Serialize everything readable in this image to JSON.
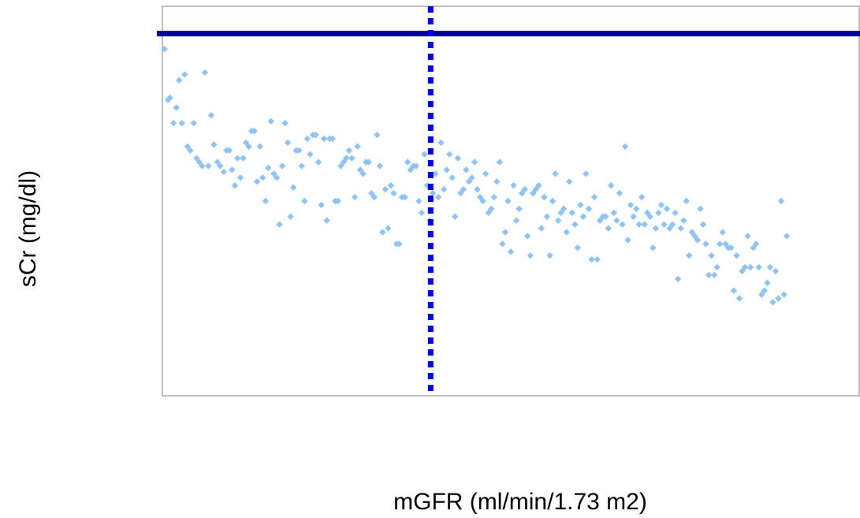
{
  "chart_data": {
    "type": "scatter",
    "title": "",
    "xlabel": "mGFR (ml/min/1.73 m2)",
    "ylabel": "sCr (mg/dl)",
    "xlim": [
      0,
      1
    ],
    "ylim": [
      0,
      1
    ],
    "grid": false,
    "ticks_shown": false,
    "colors": {
      "points": "#90c4f5",
      "horizontal_line": "#000099",
      "vertical_line": "#0000ee",
      "frame": "#7f7f7f"
    },
    "reference_lines": [
      {
        "orientation": "horizontal",
        "y": 0.93,
        "style": "solid"
      },
      {
        "orientation": "vertical",
        "x": 0.385,
        "style": "dotted"
      }
    ],
    "series": [
      {
        "marker": "diamond",
        "points": [
          [
            0.003,
            0.89
          ],
          [
            0.008,
            0.76
          ],
          [
            0.011,
            0.765
          ],
          [
            0.016,
            0.7
          ],
          [
            0.02,
            0.74
          ],
          [
            0.024,
            0.81
          ],
          [
            0.028,
            0.7
          ],
          [
            0.032,
            0.825
          ],
          [
            0.036,
            0.64
          ],
          [
            0.04,
            0.63
          ],
          [
            0.045,
            0.7
          ],
          [
            0.049,
            0.61
          ],
          [
            0.053,
            0.6
          ],
          [
            0.057,
            0.59
          ],
          [
            0.061,
            0.83
          ],
          [
            0.066,
            0.59
          ],
          [
            0.07,
            0.72
          ],
          [
            0.074,
            0.645
          ],
          [
            0.079,
            0.6
          ],
          [
            0.083,
            0.59
          ],
          [
            0.088,
            0.575
          ],
          [
            0.092,
            0.63
          ],
          [
            0.096,
            0.63
          ],
          [
            0.1,
            0.58
          ],
          [
            0.104,
            0.54
          ],
          [
            0.108,
            0.61
          ],
          [
            0.112,
            0.56
          ],
          [
            0.116,
            0.61
          ],
          [
            0.12,
            0.65
          ],
          [
            0.124,
            0.64
          ],
          [
            0.128,
            0.68
          ],
          [
            0.132,
            0.68
          ],
          [
            0.136,
            0.55
          ],
          [
            0.14,
            0.64
          ],
          [
            0.144,
            0.56
          ],
          [
            0.148,
            0.5
          ],
          [
            0.152,
            0.585
          ],
          [
            0.156,
            0.705
          ],
          [
            0.16,
            0.57
          ],
          [
            0.164,
            0.56
          ],
          [
            0.168,
            0.44
          ],
          [
            0.172,
            0.59
          ],
          [
            0.176,
            0.7
          ],
          [
            0.18,
            0.65
          ],
          [
            0.184,
            0.46
          ],
          [
            0.188,
            0.535
          ],
          [
            0.192,
            0.63
          ],
          [
            0.196,
            0.63
          ],
          [
            0.2,
            0.59
          ],
          [
            0.204,
            0.5
          ],
          [
            0.208,
            0.66
          ],
          [
            0.212,
            0.62
          ],
          [
            0.216,
            0.67
          ],
          [
            0.22,
            0.67
          ],
          [
            0.224,
            0.6
          ],
          [
            0.228,
            0.49
          ],
          [
            0.232,
            0.66
          ],
          [
            0.236,
            0.45
          ],
          [
            0.24,
            0.66
          ],
          [
            0.244,
            0.66
          ],
          [
            0.248,
            0.5
          ],
          [
            0.252,
            0.5
          ],
          [
            0.256,
            0.59
          ],
          [
            0.26,
            0.6
          ],
          [
            0.264,
            0.61
          ],
          [
            0.268,
            0.63
          ],
          [
            0.272,
            0.61
          ],
          [
            0.276,
            0.51
          ],
          [
            0.28,
            0.64
          ],
          [
            0.284,
            0.58
          ],
          [
            0.288,
            0.57
          ],
          [
            0.292,
            0.6
          ],
          [
            0.296,
            0.6
          ],
          [
            0.3,
            0.52
          ],
          [
            0.304,
            0.51
          ],
          [
            0.308,
            0.67
          ],
          [
            0.312,
            0.59
          ],
          [
            0.316,
            0.42
          ],
          [
            0.32,
            0.53
          ],
          [
            0.324,
            0.43
          ],
          [
            0.328,
            0.54
          ],
          [
            0.332,
            0.52
          ],
          [
            0.336,
            0.39
          ],
          [
            0.34,
            0.39
          ],
          [
            0.344,
            0.51
          ],
          [
            0.348,
            0.51
          ],
          [
            0.352,
            0.6
          ],
          [
            0.356,
            0.58
          ],
          [
            0.36,
            0.59
          ],
          [
            0.364,
            0.59
          ],
          [
            0.368,
            0.5
          ],
          [
            0.372,
            0.47
          ],
          [
            0.376,
            0.62
          ],
          [
            0.38,
            0.54
          ],
          [
            0.384,
            0.45
          ],
          [
            0.388,
            0.52
          ],
          [
            0.392,
            0.57
          ],
          [
            0.396,
            0.51
          ],
          [
            0.4,
            0.65
          ],
          [
            0.404,
            0.53
          ],
          [
            0.408,
            0.58
          ],
          [
            0.412,
            0.62
          ],
          [
            0.416,
            0.56
          ],
          [
            0.42,
            0.46
          ],
          [
            0.424,
            0.61
          ],
          [
            0.428,
            0.52
          ],
          [
            0.432,
            0.53
          ],
          [
            0.436,
            0.58
          ],
          [
            0.44,
            0.55
          ],
          [
            0.444,
            0.56
          ],
          [
            0.448,
            0.6
          ],
          [
            0.452,
            0.53
          ],
          [
            0.456,
            0.51
          ],
          [
            0.46,
            0.5
          ],
          [
            0.464,
            0.57
          ],
          [
            0.468,
            0.47
          ],
          [
            0.472,
            0.48
          ],
          [
            0.476,
            0.51
          ],
          [
            0.48,
            0.55
          ],
          [
            0.484,
            0.6
          ],
          [
            0.488,
            0.39
          ],
          [
            0.492,
            0.42
          ],
          [
            0.496,
            0.5
          ],
          [
            0.5,
            0.37
          ],
          [
            0.504,
            0.54
          ],
          [
            0.508,
            0.45
          ],
          [
            0.512,
            0.48
          ],
          [
            0.516,
            0.52
          ],
          [
            0.52,
            0.53
          ],
          [
            0.524,
            0.41
          ],
          [
            0.528,
            0.36
          ],
          [
            0.532,
            0.52
          ],
          [
            0.536,
            0.53
          ],
          [
            0.54,
            0.54
          ],
          [
            0.544,
            0.43
          ],
          [
            0.548,
            0.51
          ],
          [
            0.552,
            0.46
          ],
          [
            0.556,
            0.36
          ],
          [
            0.56,
            0.5
          ],
          [
            0.564,
            0.57
          ],
          [
            0.568,
            0.45
          ],
          [
            0.572,
            0.47
          ],
          [
            0.576,
            0.48
          ],
          [
            0.58,
            0.42
          ],
          [
            0.584,
            0.55
          ],
          [
            0.588,
            0.47
          ],
          [
            0.592,
            0.44
          ],
          [
            0.596,
            0.38
          ],
          [
            0.6,
            0.49
          ],
          [
            0.604,
            0.46
          ],
          [
            0.608,
            0.57
          ],
          [
            0.612,
            0.48
          ],
          [
            0.616,
            0.35
          ],
          [
            0.62,
            0.51
          ],
          [
            0.624,
            0.35
          ],
          [
            0.628,
            0.45
          ],
          [
            0.632,
            0.46
          ],
          [
            0.636,
            0.46
          ],
          [
            0.64,
            0.43
          ],
          [
            0.644,
            0.54
          ],
          [
            0.648,
            0.47
          ],
          [
            0.652,
            0.45
          ],
          [
            0.656,
            0.52
          ],
          [
            0.66,
            0.44
          ],
          [
            0.664,
            0.64
          ],
          [
            0.668,
            0.4
          ],
          [
            0.672,
            0.49
          ],
          [
            0.676,
            0.46
          ],
          [
            0.68,
            0.48
          ],
          [
            0.684,
            0.44
          ],
          [
            0.688,
            0.51
          ],
          [
            0.692,
            0.44
          ],
          [
            0.696,
            0.47
          ],
          [
            0.7,
            0.46
          ],
          [
            0.704,
            0.38
          ],
          [
            0.708,
            0.43
          ],
          [
            0.712,
            0.47
          ],
          [
            0.716,
            0.49
          ],
          [
            0.72,
            0.44
          ],
          [
            0.724,
            0.48
          ],
          [
            0.728,
            0.43
          ],
          [
            0.732,
            0.44
          ],
          [
            0.736,
            0.47
          ],
          [
            0.74,
            0.3
          ],
          [
            0.744,
            0.43
          ],
          [
            0.748,
            0.45
          ],
          [
            0.752,
            0.5
          ],
          [
            0.756,
            0.36
          ],
          [
            0.76,
            0.42
          ],
          [
            0.764,
            0.41
          ],
          [
            0.768,
            0.4
          ],
          [
            0.772,
            0.48
          ],
          [
            0.776,
            0.44
          ],
          [
            0.78,
            0.39
          ],
          [
            0.784,
            0.31
          ],
          [
            0.788,
            0.36
          ],
          [
            0.792,
            0.31
          ],
          [
            0.796,
            0.33
          ],
          [
            0.8,
            0.39
          ],
          [
            0.804,
            0.42
          ],
          [
            0.808,
            0.39
          ],
          [
            0.812,
            0.38
          ],
          [
            0.816,
            0.38
          ],
          [
            0.82,
            0.27
          ],
          [
            0.824,
            0.36
          ],
          [
            0.828,
            0.25
          ],
          [
            0.832,
            0.32
          ],
          [
            0.836,
            0.33
          ],
          [
            0.84,
            0.41
          ],
          [
            0.844,
            0.33
          ],
          [
            0.848,
            0.38
          ],
          [
            0.852,
            0.39
          ],
          [
            0.856,
            0.33
          ],
          [
            0.86,
            0.26
          ],
          [
            0.864,
            0.27
          ],
          [
            0.868,
            0.29
          ],
          [
            0.872,
            0.33
          ],
          [
            0.876,
            0.24
          ],
          [
            0.88,
            0.32
          ],
          [
            0.884,
            0.25
          ],
          [
            0.888,
            0.5
          ],
          [
            0.892,
            0.26
          ],
          [
            0.896,
            0.41
          ]
        ]
      }
    ]
  }
}
